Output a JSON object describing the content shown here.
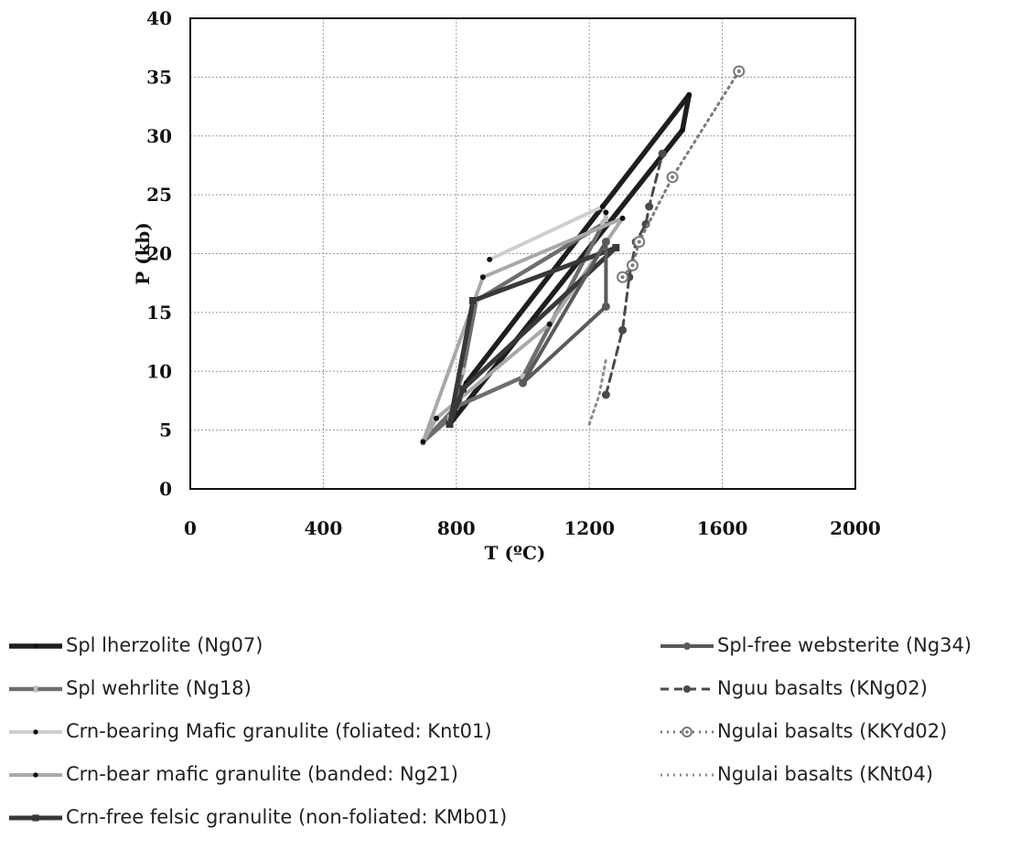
{
  "chart_data": {
    "type": "line",
    "xlabel": "T (ºC)",
    "ylabel": "P (kb)",
    "xlim": [
      0,
      2000
    ],
    "ylim": [
      0,
      40
    ],
    "xticks": [
      0,
      400,
      800,
      1200,
      1600,
      2000
    ],
    "yticks": [
      0,
      5,
      10,
      15,
      20,
      25,
      30,
      35,
      40
    ],
    "grid": true,
    "legend_position": "bottom",
    "series": [
      {
        "name": "Spl lherzolite (Ng07)",
        "style": "solid",
        "color": "#1e1e1e",
        "width": 5.5,
        "marker": "dot",
        "points": [
          [
            780,
            5.5
          ],
          [
            1480,
            30.5
          ],
          [
            1500,
            33.5
          ],
          [
            830,
            9
          ],
          [
            780,
            5.5
          ]
        ]
      },
      {
        "name": "Spl wehrlite (Ng18)",
        "style": "solid",
        "color": "#6e6e6e",
        "width": 4.5,
        "marker": "dash",
        "points": [
          [
            700,
            4
          ],
          [
            780,
            6
          ],
          [
            820,
            10
          ],
          [
            860,
            16
          ],
          [
            1240,
            22.5
          ],
          [
            1250,
            23
          ],
          [
            1000,
            9.5
          ],
          [
            800,
            7
          ],
          [
            700,
            4
          ]
        ]
      },
      {
        "name": "Crn-bearing Mafic granulite (foliated: Knt01)",
        "style": "solid",
        "color": "#cfcfcf",
        "width": 4,
        "marker": "dot",
        "points": [
          [
            900,
            19.5
          ],
          [
            1240,
            24
          ],
          [
            1250,
            23.5
          ]
        ]
      },
      {
        "name": "Crn-bear mafic granulite (banded: Ng21)",
        "style": "solid",
        "color": "#a8a8a8",
        "width": 4,
        "marker": "dot",
        "points": [
          [
            700,
            4
          ],
          [
            880,
            18
          ],
          [
            1300,
            23
          ],
          [
            1080,
            14
          ],
          [
            740,
            6
          ],
          [
            700,
            4
          ]
        ]
      },
      {
        "name": "Crn-free felsic granulite (non-foliated: KMb01)",
        "style": "solid",
        "color": "#383838",
        "width": 5,
        "marker": "square",
        "points": [
          [
            780,
            5.5
          ],
          [
            850,
            16
          ],
          [
            1280,
            20.5
          ],
          [
            820,
            8.5
          ],
          [
            780,
            5.5
          ]
        ]
      },
      {
        "name": "Spl-free websterite (Ng34)",
        "style": "solid",
        "color": "#5a5a5a",
        "width": 4,
        "marker": "circle",
        "points": [
          [
            1000,
            9
          ],
          [
            1250,
            15.5
          ],
          [
            1250,
            21
          ],
          [
            1000,
            9
          ]
        ]
      },
      {
        "name": "Nguu basalts (KNg02)",
        "style": "dashed",
        "color": "#4a4a4a",
        "width": 3,
        "marker": "circle",
        "points": [
          [
            1250,
            8
          ],
          [
            1300,
            13.5
          ],
          [
            1320,
            18
          ],
          [
            1340,
            21
          ],
          [
            1370,
            22.5
          ],
          [
            1380,
            24
          ],
          [
            1420,
            28.5
          ]
        ]
      },
      {
        "name": "Ngulai basalts (KKYd02)",
        "style": "dotted",
        "color": "#7a7a7a",
        "width": 3,
        "marker": "ring",
        "points": [
          [
            1300,
            18
          ],
          [
            1330,
            19
          ],
          [
            1350,
            21
          ],
          [
            1450,
            26.5
          ],
          [
            1650,
            35.5
          ]
        ]
      },
      {
        "name": "Ngulai basalts (KNt04)",
        "style": "dotted",
        "color": "#8a8a8a",
        "width": 3,
        "marker": "none",
        "points": [
          [
            1200,
            5.5
          ],
          [
            1230,
            8
          ],
          [
            1250,
            11
          ]
        ]
      }
    ]
  }
}
